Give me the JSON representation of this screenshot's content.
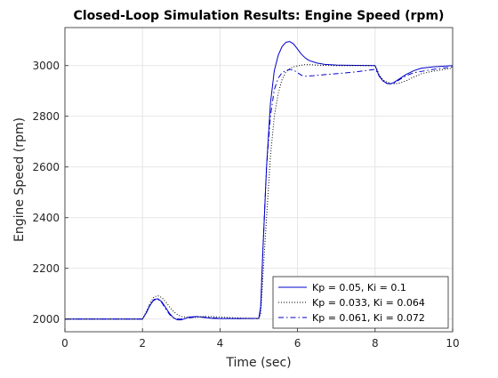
{
  "chart_data": {
    "type": "line",
    "title": "Closed-Loop Simulation Results: Engine Speed (rpm)",
    "xlabel": "Time (sec)",
    "ylabel": "Engine Speed (rpm)",
    "xlim": [
      0,
      10
    ],
    "ylim": [
      1950,
      3150
    ],
    "xticks": [
      0,
      2,
      4,
      6,
      8,
      10
    ],
    "yticks": [
      2000,
      2200,
      2400,
      2600,
      2800,
      3000
    ],
    "grid": true,
    "legend_position": "bottom-right",
    "series": [
      {
        "name": "Kp = 0.05, Ki = 0.1",
        "color": "#0000cc",
        "style": "solid",
        "x": [
          0,
          2.0,
          2.1,
          2.2,
          2.3,
          2.4,
          2.5,
          2.6,
          2.7,
          2.8,
          2.9,
          3.0,
          3.1,
          3.2,
          3.4,
          3.6,
          3.8,
          4.0,
          4.5,
          5.0,
          5.05,
          5.1,
          5.2,
          5.3,
          5.4,
          5.5,
          5.6,
          5.7,
          5.8,
          5.9,
          6.0,
          6.1,
          6.2,
          6.3,
          6.5,
          6.7,
          7.0,
          7.5,
          8.0,
          8.05,
          8.1,
          8.2,
          8.3,
          8.4,
          8.5,
          8.6,
          8.8,
          9.0,
          9.2,
          9.5,
          10.0
        ],
        "y": [
          2000,
          2000,
          2025,
          2055,
          2078,
          2080,
          2068,
          2045,
          2022,
          2005,
          1997,
          1997,
          2002,
          2008,
          2010,
          2006,
          2003,
          2002,
          2002,
          2003,
          2050,
          2250,
          2600,
          2850,
          2980,
          3040,
          3075,
          3092,
          3095,
          3085,
          3065,
          3045,
          3030,
          3020,
          3010,
          3005,
          3002,
          3001,
          3000,
          2980,
          2960,
          2940,
          2930,
          2928,
          2935,
          2945,
          2965,
          2980,
          2990,
          2995,
          3000
        ]
      },
      {
        "name": "Kp = 0.033, Ki = 0.064",
        "color": "#000000",
        "style": "dotted",
        "x": [
          0,
          2.0,
          2.1,
          2.2,
          2.3,
          2.4,
          2.5,
          2.6,
          2.7,
          2.8,
          2.9,
          3.0,
          3.2,
          3.4,
          3.6,
          3.8,
          4.0,
          4.5,
          5.0,
          5.05,
          5.1,
          5.2,
          5.3,
          5.4,
          5.5,
          5.6,
          5.7,
          5.8,
          5.9,
          6.0,
          6.2,
          6.4,
          6.6,
          7.0,
          7.5,
          8.0,
          8.05,
          8.1,
          8.2,
          8.3,
          8.4,
          8.5,
          8.6,
          8.8,
          9.0,
          9.2,
          9.5,
          10.0
        ],
        "y": [
          2000,
          2000,
          2030,
          2065,
          2088,
          2092,
          2085,
          2068,
          2048,
          2030,
          2018,
          2010,
          2006,
          2007,
          2010,
          2010,
          2008,
          2004,
          2002,
          2020,
          2150,
          2400,
          2640,
          2800,
          2890,
          2945,
          2975,
          2988,
          2995,
          2999,
          3004,
          3003,
          3001,
          3000,
          3000,
          3000,
          2985,
          2965,
          2945,
          2935,
          2930,
          2928,
          2930,
          2940,
          2955,
          2968,
          2978,
          2990
        ]
      },
      {
        "name": "Kp = 0.061, Ki = 0.072",
        "color": "#0000cc",
        "style": "dashdot",
        "x": [
          0,
          2.0,
          2.1,
          2.2,
          2.3,
          2.4,
          2.5,
          2.6,
          2.7,
          2.8,
          2.9,
          3.0,
          3.2,
          3.4,
          3.6,
          3.8,
          4.0,
          4.5,
          5.0,
          5.05,
          5.1,
          5.2,
          5.3,
          5.4,
          5.5,
          5.6,
          5.7,
          5.8,
          5.9,
          6.0,
          6.1,
          6.2,
          6.4,
          6.6,
          7.0,
          7.5,
          8.0,
          8.05,
          8.1,
          8.2,
          8.3,
          8.4,
          8.5,
          8.6,
          8.8,
          9.0,
          9.5,
          10.0
        ],
        "y": [
          2000,
          2000,
          2025,
          2060,
          2075,
          2078,
          2065,
          2040,
          2018,
          2005,
          2000,
          2000,
          2005,
          2009,
          2008,
          2005,
          2003,
          2002,
          2002,
          2040,
          2250,
          2600,
          2800,
          2905,
          2950,
          2972,
          2980,
          2985,
          2982,
          2972,
          2962,
          2958,
          2960,
          2963,
          2968,
          2975,
          2985,
          2975,
          2960,
          2940,
          2930,
          2928,
          2932,
          2942,
          2960,
          2972,
          2985,
          2995
        ]
      }
    ]
  }
}
